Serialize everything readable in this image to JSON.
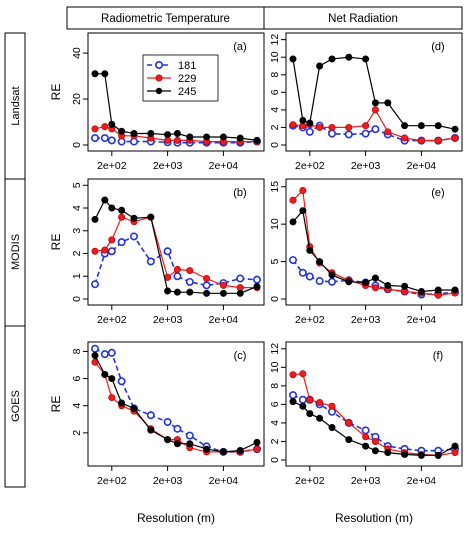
{
  "column_titles": [
    "Radiometric Temperature",
    "Net Radiation"
  ],
  "row_labels": [
    "Landsat",
    "MODIS",
    "GOES"
  ],
  "legend": [
    {
      "label": "181",
      "color": "#2233dd",
      "marker": "open-circle",
      "dash": "dashed"
    },
    {
      "label": "229",
      "color": "#ee1c1c",
      "marker": "filled-circle",
      "dash": "solid"
    },
    {
      "label": "245",
      "color": "#000000",
      "marker": "filled-circle",
      "dash": "solid"
    }
  ],
  "chart_data": [
    {
      "type": "line",
      "panel_label": "(a)",
      "ylabel": "RE",
      "xlabel": "",
      "x_scale": "log",
      "x_ticks": [
        "2e+02",
        "2e+03",
        "2e+04"
      ],
      "y_ticks": [
        0,
        20,
        40
      ],
      "ylim": [
        0,
        47
      ],
      "x": [
        100,
        150,
        200,
        300,
        500,
        1000,
        2000,
        3000,
        5000,
        10000,
        20000,
        40000,
        80000
      ],
      "series": [
        {
          "name": "181",
          "values": [
            3.0,
            3.0,
            2.0,
            1.5,
            1.5,
            1.5,
            1.2,
            1.0,
            1.0,
            1.0,
            1.0,
            1.0,
            1.5
          ]
        },
        {
          "name": "229",
          "values": [
            7.0,
            8.0,
            7.0,
            4.0,
            4.0,
            3.0,
            2.0,
            2.0,
            2.0,
            1.5,
            1.5,
            1.5,
            1.5
          ]
        },
        {
          "name": "245",
          "values": [
            31.0,
            31.0,
            9.0,
            6.0,
            5.0,
            5.0,
            4.5,
            5.0,
            3.5,
            3.5,
            3.5,
            3.0,
            2.0
          ]
        }
      ]
    },
    {
      "type": "line",
      "panel_label": "(d)",
      "ylabel": "",
      "xlabel": "",
      "x_scale": "log",
      "x_ticks": [
        "2e+02",
        "2e+03",
        "2e+04"
      ],
      "y_ticks": [
        0,
        2,
        4,
        6,
        8,
        10,
        12
      ],
      "ylim": [
        0,
        12.3
      ],
      "x": [
        100,
        150,
        200,
        300,
        500,
        1000,
        2000,
        3000,
        5000,
        10000,
        20000,
        40000,
        80000
      ],
      "series": [
        {
          "name": "181",
          "values": [
            2.2,
            2.0,
            1.5,
            2.2,
            1.3,
            1.2,
            1.3,
            1.8,
            1.2,
            0.5,
            0.5,
            0.5,
            0.8
          ]
        },
        {
          "name": "229",
          "values": [
            2.3,
            2.2,
            2.3,
            2.0,
            2.0,
            2.0,
            2.2,
            4.0,
            1.5,
            0.8,
            0.5,
            0.5,
            0.8
          ]
        },
        {
          "name": "245",
          "values": [
            9.8,
            2.8,
            2.5,
            9.0,
            9.8,
            10.0,
            9.8,
            4.8,
            4.8,
            2.2,
            2.2,
            2.2,
            1.8
          ]
        }
      ]
    },
    {
      "type": "line",
      "panel_label": "(b)",
      "ylabel": "RE",
      "xlabel": "",
      "x_scale": "log",
      "x_ticks": [
        "2e+02",
        "2e+03",
        "2e+04"
      ],
      "y_ticks": [
        0,
        1,
        2,
        3,
        4,
        5
      ],
      "ylim": [
        0,
        5.1
      ],
      "x": [
        100,
        150,
        200,
        300,
        500,
        1000,
        2000,
        3000,
        5000,
        10000,
        20000,
        40000,
        80000
      ],
      "series": [
        {
          "name": "181",
          "values": [
            0.65,
            2.0,
            2.1,
            2.5,
            2.75,
            1.65,
            2.1,
            1.0,
            0.75,
            0.6,
            0.7,
            0.9,
            0.85
          ]
        },
        {
          "name": "229",
          "values": [
            2.1,
            2.15,
            2.6,
            3.6,
            3.4,
            3.6,
            0.95,
            1.3,
            1.25,
            0.9,
            0.6,
            0.5,
            0.5
          ]
        },
        {
          "name": "245",
          "values": [
            3.5,
            4.35,
            4.0,
            3.9,
            3.55,
            3.6,
            0.35,
            0.3,
            0.3,
            0.25,
            0.25,
            0.25,
            0.55
          ]
        }
      ]
    },
    {
      "type": "line",
      "panel_label": "(e)",
      "ylabel": "",
      "xlabel": "",
      "x_scale": "log",
      "x_ticks": [
        "2e+02",
        "2e+03",
        "2e+04"
      ],
      "y_ticks": [
        0,
        5,
        10,
        15
      ],
      "ylim": [
        0,
        15.5
      ],
      "x": [
        100,
        150,
        200,
        300,
        500,
        1000,
        2000,
        3000,
        5000,
        10000,
        20000,
        40000,
        80000
      ],
      "series": [
        {
          "name": "181",
          "values": [
            5.2,
            3.5,
            3.0,
            2.4,
            2.3,
            2.5,
            2.2,
            1.8,
            1.3,
            1.0,
            0.6,
            0.7,
            0.9
          ]
        },
        {
          "name": "229",
          "values": [
            13.2,
            14.5,
            7.0,
            4.8,
            3.5,
            2.5,
            1.8,
            1.5,
            1.3,
            1.0,
            0.8,
            0.5,
            0.8
          ]
        },
        {
          "name": "245",
          "values": [
            10.3,
            11.8,
            6.5,
            5.0,
            3.2,
            2.3,
            2.2,
            2.8,
            1.8,
            1.7,
            1.0,
            1.2,
            1.2
          ]
        }
      ]
    },
    {
      "type": "line",
      "panel_label": "(c)",
      "ylabel": "RE",
      "xlabel": "Resolution (m)",
      "x_scale": "log",
      "x_ticks": [
        "2e+02",
        "2e+03",
        "2e+04"
      ],
      "y_ticks": [
        2,
        4,
        6,
        8
      ],
      "ylim": [
        0,
        8.4
      ],
      "x": [
        100,
        150,
        200,
        300,
        500,
        1000,
        2000,
        3000,
        5000,
        10000,
        20000,
        40000,
        80000
      ],
      "series": [
        {
          "name": "181",
          "values": [
            8.2,
            7.8,
            7.9,
            5.8,
            3.8,
            3.3,
            2.8,
            2.3,
            1.8,
            1.0,
            0.6,
            0.6,
            0.8
          ]
        },
        {
          "name": "229",
          "values": [
            7.2,
            6.3,
            4.6,
            4.0,
            3.6,
            2.3,
            1.5,
            1.5,
            0.9,
            0.6,
            0.6,
            0.6,
            0.8
          ]
        },
        {
          "name": "245",
          "values": [
            7.7,
            6.3,
            6.0,
            4.2,
            3.8,
            2.2,
            1.5,
            1.2,
            1.2,
            0.8,
            0.6,
            0.7,
            1.3
          ]
        }
      ]
    },
    {
      "type": "line",
      "panel_label": "(f)",
      "ylabel": "",
      "xlabel": "Resolution (m)",
      "x_scale": "log",
      "x_ticks": [
        "2e+02",
        "2e+03",
        "2e+04"
      ],
      "y_ticks": [
        0,
        2,
        4,
        6,
        8,
        10,
        12
      ],
      "ylim": [
        0,
        12.3
      ],
      "x": [
        100,
        150,
        200,
        300,
        500,
        1000,
        2000,
        3000,
        5000,
        10000,
        20000,
        40000,
        80000
      ],
      "series": [
        {
          "name": "181",
          "values": [
            7.0,
            6.5,
            6.5,
            6.0,
            5.2,
            4.0,
            3.2,
            2.5,
            1.5,
            1.2,
            1.0,
            1.0,
            1.2
          ]
        },
        {
          "name": "229",
          "values": [
            9.2,
            9.3,
            6.5,
            6.2,
            5.8,
            4.0,
            2.5,
            2.0,
            1.2,
            0.8,
            0.6,
            0.5,
            0.8
          ]
        },
        {
          "name": "245",
          "values": [
            6.3,
            5.8,
            5.0,
            4.5,
            3.5,
            2.2,
            1.5,
            1.0,
            0.8,
            0.6,
            0.5,
            0.5,
            1.5
          ]
        }
      ]
    }
  ]
}
